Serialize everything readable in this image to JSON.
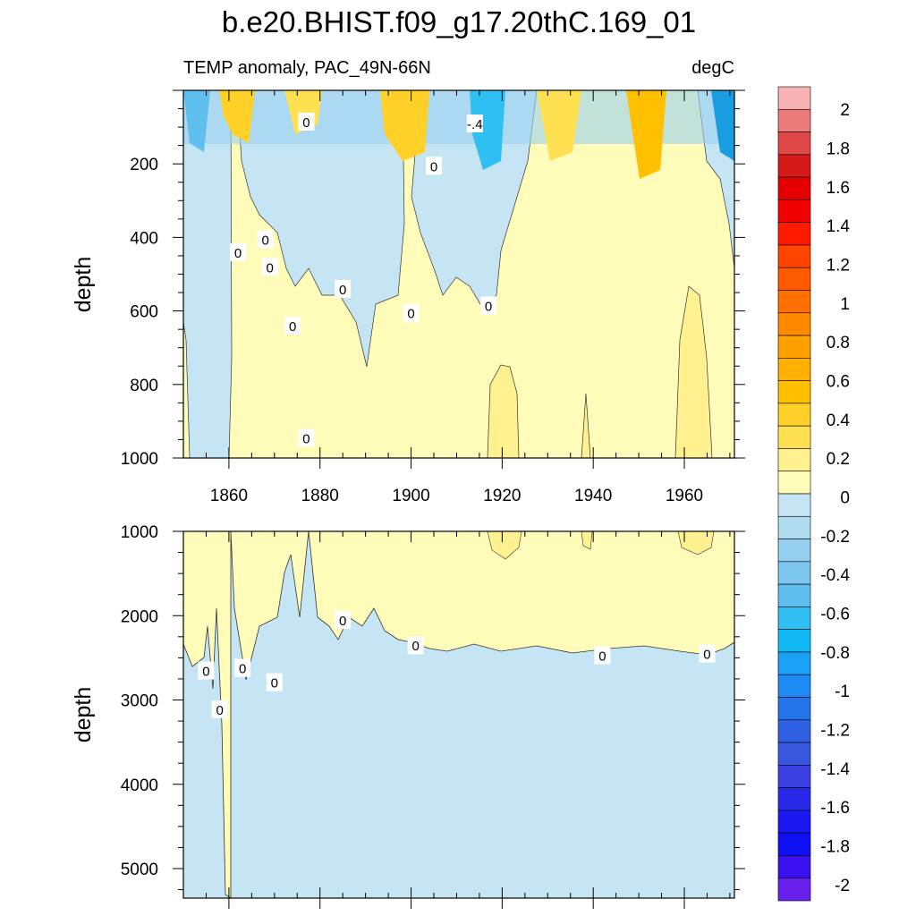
{
  "chart_data": [
    {
      "type": "heatmap",
      "panel": "upper",
      "title": "b.e20.BHIST.f09_g17.20thC.169_01",
      "left_subtitle": "TEMP anomaly, PAC_49N-66N",
      "right_subtitle": "degC",
      "ylabel": "depth",
      "xlim": [
        1850,
        1971
      ],
      "ylim": [
        1000,
        0
      ],
      "x_ticks": [
        1860,
        1880,
        1900,
        1920,
        1940,
        1960
      ],
      "x_tick_labels": [
        "1860",
        "1880",
        "1900",
        "1920",
        "1940",
        "1960"
      ],
      "y_ticks": [
        200,
        400,
        600,
        800,
        1000
      ],
      "y_tick_labels": [
        "200",
        "400",
        "600",
        "800",
        "1000"
      ],
      "contour_labels": [
        {
          "text": "0",
          "x": 1877,
          "y": 85
        },
        {
          "text": "-.4",
          "x": 1914,
          "y": 90
        },
        {
          "text": "0",
          "x": 1905,
          "y": 205
        },
        {
          "text": "0",
          "x": 1862,
          "y": 440
        },
        {
          "text": "0",
          "x": 1868,
          "y": 405
        },
        {
          "text": "0",
          "x": 1869,
          "y": 480
        },
        {
          "text": "0",
          "x": 1885,
          "y": 540
        },
        {
          "text": "0",
          "x": 1900,
          "y": 605
        },
        {
          "text": "0",
          "x": 1917,
          "y": 585
        },
        {
          "text": "0",
          "x": 1874,
          "y": 640
        },
        {
          "text": "0",
          "x": 1877,
          "y": 945
        }
      ]
    },
    {
      "type": "heatmap",
      "panel": "lower",
      "ylabel": "depth",
      "xlim": [
        1850,
        1971
      ],
      "ylim": [
        5350,
        1000
      ],
      "y_ticks": [
        1000,
        2000,
        3000,
        4000,
        5000
      ],
      "y_tick_labels": [
        "1000",
        "2000",
        "3000",
        "4000",
        "5000"
      ],
      "contour_labels": [
        {
          "text": "0",
          "x": 1855,
          "y": 2650
        },
        {
          "text": "0",
          "x": 1863,
          "y": 2620
        },
        {
          "text": "0",
          "x": 1858,
          "y": 3110
        },
        {
          "text": "0",
          "x": 1870,
          "y": 2790
        },
        {
          "text": "0",
          "x": 1885,
          "y": 2050
        },
        {
          "text": "0",
          "x": 1901,
          "y": 2350
        },
        {
          "text": "0",
          "x": 1942,
          "y": 2470
        },
        {
          "text": "0",
          "x": 1965,
          "y": 2450
        }
      ]
    },
    {
      "type": "colorbar",
      "labels": [
        "2",
        "1.8",
        "1.6",
        "1.4",
        "1.2",
        "1",
        "0.8",
        "0.6",
        "0.4",
        "0.2",
        "0",
        "-0.2",
        "-0.4",
        "-0.6",
        "-0.8",
        "-1",
        "-1.2",
        "-1.4",
        "-1.6",
        "-1.8",
        "-2"
      ],
      "colors": [
        "#f7b3b3",
        "#ee7b7b",
        "#e04848",
        "#d41a1a",
        "#e40000",
        "#f00000",
        "#ff1a00",
        "#ff4400",
        "#ff5a00",
        "#ff7000",
        "#ff8a00",
        "#ffa000",
        "#ffb000",
        "#ffc000",
        "#ffd028",
        "#ffe050",
        "#fff090",
        "#fffbb8",
        "#c6e5f4",
        "#b0dcf0",
        "#97d0ee",
        "#7cc6ec",
        "#5fc0ef",
        "#2fbff2",
        "#10b8f4",
        "#1aa0f5",
        "#1e8af3",
        "#2474ec",
        "#3060e4",
        "#3a58de",
        "#3a40e0",
        "#2a28e8",
        "#1a18f0",
        "#1010f4",
        "#3a10f0",
        "#6a20ec"
      ]
    }
  ]
}
